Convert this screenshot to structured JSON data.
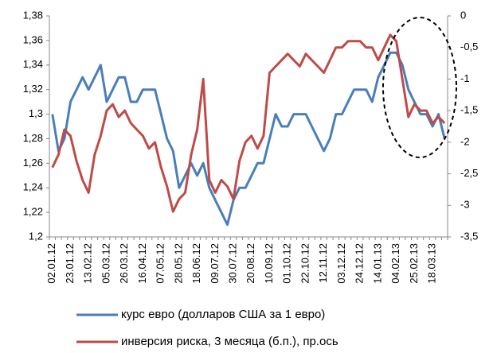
{
  "chart_data": {
    "type": "line",
    "categories": [
      "02.01.12",
      null,
      null,
      "23.01.12",
      null,
      null,
      "13.02.12",
      null,
      null,
      "05.03.12",
      null,
      null,
      "26.03.12",
      null,
      null,
      "16.04.12",
      null,
      null,
      "07.05.12",
      null,
      null,
      "28.05.12",
      null,
      null,
      "18.06.12",
      null,
      null,
      "09.07.12",
      null,
      null,
      "30.07.12",
      null,
      null,
      "20.08.12",
      null,
      null,
      "10.09.12",
      null,
      null,
      "01.10.12",
      null,
      null,
      "22.10.12",
      null,
      null,
      "12.11.12",
      null,
      null,
      "03.12.12",
      null,
      null,
      "24.12.12",
      null,
      null,
      "14.01.13",
      null,
      null,
      "04.02.13",
      null,
      null,
      "25.02.13",
      null,
      null,
      "18.03.13",
      null,
      null
    ],
    "series": [
      {
        "name": "курс евро (долларов США за 1 евро)",
        "color": "#4a7ebb",
        "axis": "y",
        "values": [
          1.3,
          1.27,
          1.28,
          1.31,
          1.32,
          1.33,
          1.32,
          1.33,
          1.34,
          1.31,
          1.32,
          1.33,
          1.33,
          1.31,
          1.31,
          1.32,
          1.32,
          1.32,
          1.3,
          1.28,
          1.27,
          1.24,
          1.25,
          1.26,
          1.25,
          1.26,
          1.24,
          1.23,
          1.22,
          1.21,
          1.23,
          1.24,
          1.24,
          1.25,
          1.26,
          1.26,
          1.28,
          1.3,
          1.29,
          1.29,
          1.3,
          1.3,
          1.3,
          1.29,
          1.28,
          1.27,
          1.28,
          1.3,
          1.3,
          1.31,
          1.32,
          1.32,
          1.32,
          1.31,
          1.33,
          1.34,
          1.35,
          1.35,
          1.34,
          1.32,
          1.31,
          1.3,
          1.3,
          1.29,
          1.3,
          1.28
        ]
      },
      {
        "name": "инверсия риска, 3 месяца (б.п.), пр.ось",
        "color": "#be4b48",
        "axis": "y2",
        "values": [
          -2.4,
          -2.2,
          -1.8,
          -1.9,
          -2.3,
          -2.6,
          -2.8,
          -2.2,
          -1.9,
          -1.5,
          -1.4,
          -1.6,
          -1.5,
          -1.7,
          -1.8,
          -1.9,
          -2.1,
          -2.0,
          -2.4,
          -2.7,
          -3.1,
          -2.9,
          -2.8,
          -2.2,
          -1.8,
          -1.0,
          -2.6,
          -2.8,
          -2.6,
          -2.7,
          -2.9,
          -2.3,
          -2.0,
          -1.9,
          -2.1,
          -1.9,
          -0.9,
          -0.8,
          -0.7,
          -0.6,
          -0.7,
          -0.8,
          -0.6,
          -0.7,
          -0.8,
          -0.9,
          -0.7,
          -0.5,
          -0.5,
          -0.4,
          -0.4,
          -0.4,
          -0.5,
          -0.5,
          -0.7,
          -0.5,
          -0.3,
          -0.4,
          -1.0,
          -1.6,
          -1.4,
          -1.5,
          -1.5,
          -1.7,
          -1.6,
          -1.7
        ]
      }
    ],
    "ylim": [
      1.2,
      1.38
    ],
    "yticks": [
      {
        "value": 1.2,
        "label": "1,2"
      },
      {
        "value": 1.22,
        "label": "1,22"
      },
      {
        "value": 1.24,
        "label": "1,24"
      },
      {
        "value": 1.26,
        "label": "1,26"
      },
      {
        "value": 1.28,
        "label": "1,28"
      },
      {
        "value": 1.3,
        "label": "1,3"
      },
      {
        "value": 1.32,
        "label": "1,32"
      },
      {
        "value": 1.34,
        "label": "1,34"
      },
      {
        "value": 1.36,
        "label": "1,36"
      },
      {
        "value": 1.38,
        "label": "1,38"
      }
    ],
    "y2lim": [
      -3.5,
      0
    ],
    "y2ticks": [
      -3.5,
      -3,
      -2.5,
      -2,
      -1.5,
      -1,
      -0.5,
      0
    ],
    "y2tick_labels": [
      "-3,5",
      "-3",
      "-2,5",
      "-2",
      "-1,5",
      "-1",
      "-0,5",
      "0"
    ],
    "legend": "bottom"
  }
}
